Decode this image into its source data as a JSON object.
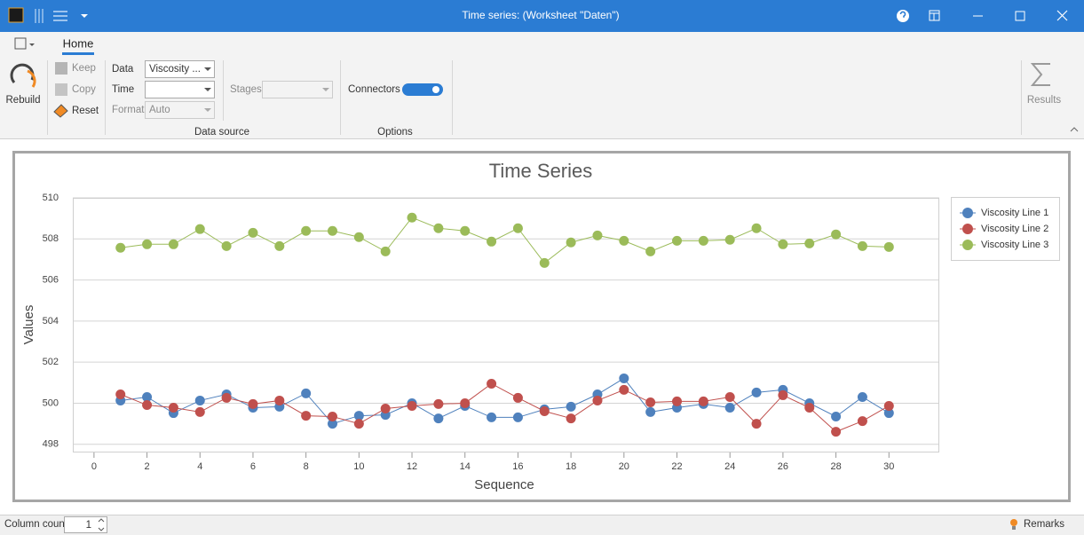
{
  "title_bar": {
    "title": "Time series:  (Worksheet \"Daten\")"
  },
  "ribbon": {
    "tab": "Home",
    "rebuild": "Rebuild",
    "keep": "Keep",
    "copy": "Copy",
    "reset": "Reset",
    "data_label": "Data",
    "data_value": "Viscosity ...",
    "time_label": "Time",
    "format_label": "Format",
    "format_value": "Auto",
    "stages_label": "Stages",
    "data_source_group": "Data source",
    "connectors_label": "Connectors",
    "options_group": "Options",
    "results": "Results"
  },
  "chart_data": {
    "type": "line",
    "title": "Time Series",
    "x_label": "Sequence",
    "y_label": "Values",
    "x": [
      1,
      2,
      3,
      4,
      5,
      6,
      7,
      8,
      9,
      10,
      11,
      12,
      13,
      14,
      15,
      16,
      17,
      18,
      19,
      20,
      21,
      22,
      23,
      24,
      25,
      26,
      27,
      28,
      29,
      30
    ],
    "series": [
      {
        "name": "Viscosity Line 1",
        "color": "#4f81bd",
        "values": [
          500.13,
          500.3,
          499.52,
          500.13,
          500.43,
          499.78,
          499.83,
          500.48,
          499.0,
          499.39,
          499.43,
          500.0,
          499.26,
          499.87,
          499.31,
          499.31,
          499.7,
          499.83,
          500.43,
          501.21,
          499.57,
          499.78,
          499.96,
          499.78,
          500.52,
          500.65,
          500.0,
          499.35,
          500.3,
          499.52
        ]
      },
      {
        "name": "Viscosity Line 2",
        "color": "#c0504d",
        "values": [
          500.43,
          499.91,
          499.78,
          499.57,
          500.26,
          499.96,
          500.13,
          499.39,
          499.35,
          499.0,
          499.74,
          499.87,
          499.96,
          500.0,
          500.95,
          500.26,
          499.61,
          499.26,
          500.13,
          500.65,
          500.04,
          500.09,
          500.09,
          500.3,
          499.0,
          500.39,
          499.78,
          498.61,
          499.13,
          499.87
        ]
      },
      {
        "name": "Viscosity Line 3",
        "color": "#9bbb59",
        "values": [
          507.57,
          507.74,
          507.74,
          508.48,
          507.65,
          508.3,
          507.65,
          508.39,
          508.39,
          508.09,
          507.39,
          509.04,
          508.52,
          508.39,
          507.87,
          508.52,
          506.83,
          507.83,
          508.17,
          507.91,
          507.39,
          507.91,
          507.91,
          507.96,
          508.52,
          507.74,
          507.78,
          508.22,
          507.65,
          507.61
        ]
      }
    ],
    "xlim": [
      -0.8,
      31.9
    ],
    "xticks": [
      0,
      2,
      4,
      6,
      8,
      10,
      12,
      14,
      16,
      18,
      20,
      22,
      24,
      26,
      28,
      30
    ],
    "ylim": [
      497.6,
      510
    ],
    "yticks": [
      498,
      500,
      502,
      504,
      506,
      508,
      510
    ],
    "grid": true,
    "legend": "right",
    "markers": true
  },
  "status_bar": {
    "column_count_label": "Column count",
    "column_count": 1,
    "remarks": "Remarks"
  }
}
